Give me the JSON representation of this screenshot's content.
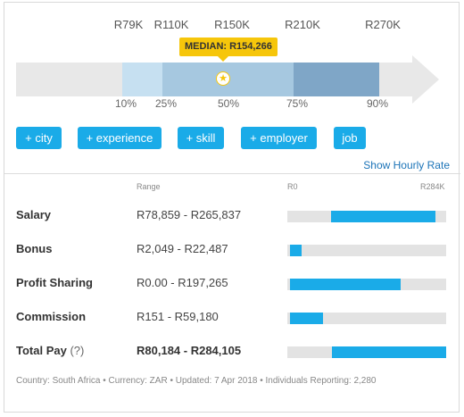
{
  "percentile_chart": {
    "top_labels": [
      "R79K",
      "R110K",
      "R150K",
      "R210K",
      "R270K"
    ],
    "median_label": "MEDIAN: R154,266",
    "bottom_labels": [
      "10%",
      "25%",
      "50%",
      "75%",
      "90%"
    ],
    "colors": {
      "track": "#e8e8e8",
      "p10_25": "#c6e0f1",
      "p25_75": "#a6c8e0",
      "p75_90": "#7fa6c7",
      "median": "#f6c60b"
    }
  },
  "filters": {
    "buttons": [
      "+ city",
      "+ experience",
      "+ skill",
      "+ employer",
      "job"
    ],
    "hourly_link": "Show Hourly Rate"
  },
  "table": {
    "range_header": "Range",
    "scale_min": "R0",
    "scale_max": "R284K",
    "scale_max_value": 284105,
    "rows": [
      {
        "label": "Salary",
        "value": "R78,859 - R265,837",
        "min": 78859,
        "max": 265837,
        "bold": false
      },
      {
        "label": "Bonus",
        "value": "R2,049 - R22,487",
        "min": 2049,
        "max": 22487,
        "bold": false
      },
      {
        "label": "Profit Sharing",
        "value": "R0.00 - R197,265",
        "min": 0,
        "max": 197265,
        "bold": false
      },
      {
        "label": "Commission",
        "value": "R151 - R59,180",
        "min": 151,
        "max": 59180,
        "bold": false
      },
      {
        "label": "Total Pay",
        "help": "(?)",
        "value": "R80,184 - R284,105",
        "min": 80184,
        "max": 284105,
        "bold": true
      }
    ]
  },
  "footer": "Country: South Africa • Currency: ZAR • Updated: 7 Apr 2018 • Individuals Reporting: 2,280"
}
